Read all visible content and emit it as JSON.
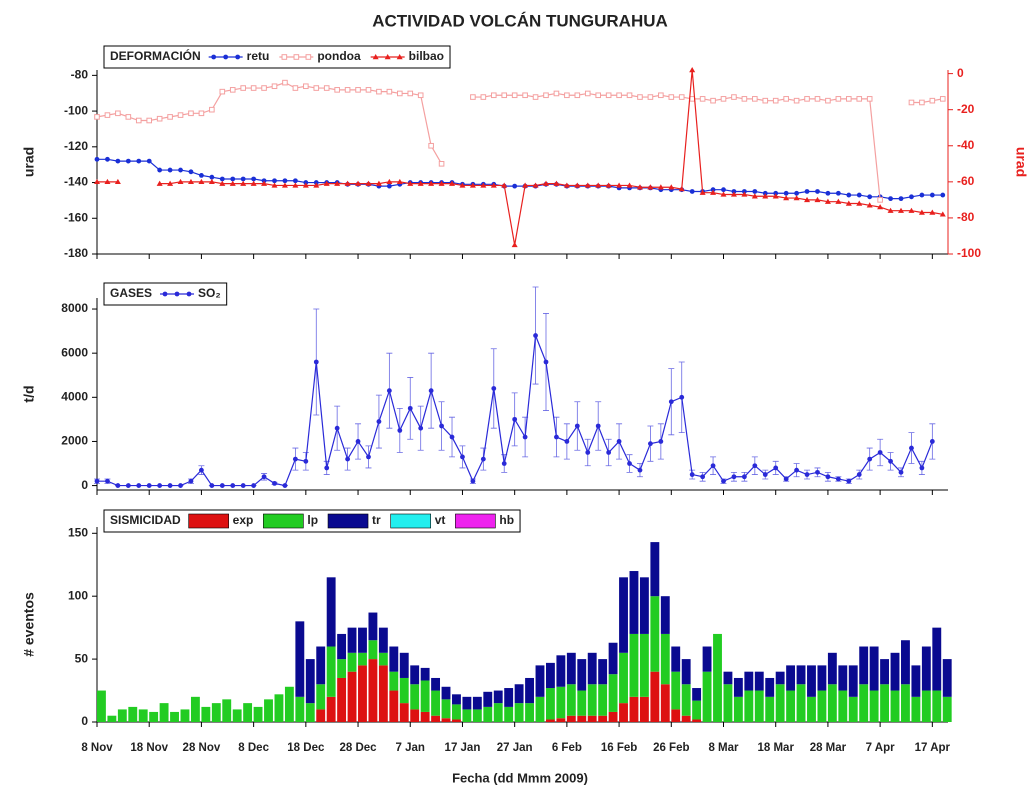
{
  "title": "ACTIVIDAD VOLCÁN TUNGURAHUA",
  "chart_data": [
    {
      "type": "line",
      "legend_title": "DEFORMACIÓN",
      "ylabel": "urad",
      "y2label": "urad",
      "y2color": "#e8201e",
      "ylim": [
        -180,
        -77
      ],
      "yticks": [
        -180,
        -160,
        -140,
        -120,
        -100,
        -80
      ],
      "y2lim": [
        -100,
        2
      ],
      "y2ticks": [
        -100,
        -80,
        -60,
        -40,
        -20,
        0
      ],
      "series": [
        {
          "name": "retu",
          "color": "#1a2fd6",
          "marker": "circle",
          "values": [
            -127,
            -127,
            -128,
            -128,
            -128,
            -128,
            -133,
            -133,
            -133,
            -134,
            -136,
            -137,
            -138,
            -138,
            -138,
            -138,
            -139,
            -139,
            -139,
            -139,
            -140,
            -140,
            -140,
            -140,
            -141,
            -141,
            -141,
            -142,
            -142,
            -141,
            -140,
            -140,
            -140,
            -140,
            -140,
            -141,
            -141,
            -141,
            -141,
            -142,
            -142,
            -142,
            -142,
            -141,
            -141,
            -142,
            -142,
            -142,
            -142,
            -142,
            -143,
            -143,
            -143,
            -143,
            -144,
            -144,
            -144,
            -145,
            -145,
            -144,
            -144,
            -145,
            -145,
            -145,
            -146,
            -146,
            -146,
            -146,
            -145,
            -145,
            -146,
            -146,
            -147,
            -147,
            -148,
            -148,
            -149,
            -149,
            -148,
            -147,
            -147,
            -147
          ]
        },
        {
          "name": "pondoa",
          "color": "#f4a0a0",
          "marker": "square-open",
          "axis": "y2",
          "values": [
            -24,
            -23,
            -22,
            -24,
            -26,
            -26,
            -25,
            -24,
            -23,
            -22,
            -22,
            -20,
            -10,
            -9,
            -8,
            -8,
            -8,
            -7,
            -5,
            -8,
            -7,
            -8,
            -8,
            -9,
            -9,
            -9,
            -9,
            -10,
            -10,
            -11,
            -11,
            -12,
            -40,
            -50,
            null,
            null,
            -13,
            -13,
            -12,
            -12,
            -12,
            -12,
            -13,
            -12,
            -11,
            -12,
            -12,
            -11,
            -12,
            -12,
            -12,
            -12,
            -13,
            -13,
            -12,
            -13,
            -13,
            -14,
            -14,
            -15,
            -14,
            -13,
            -14,
            -14,
            -15,
            -15,
            -14,
            -15,
            -14,
            -14,
            -15,
            -14,
            -14,
            -14,
            -14,
            -70,
            null,
            null,
            -16,
            -16,
            -15,
            -14
          ]
        },
        {
          "name": "bilbao",
          "color": "#e8201e",
          "marker": "triangle",
          "axis": "y2",
          "values": [
            -60,
            -60,
            -60,
            null,
            null,
            null,
            -61,
            -61,
            -60,
            -60,
            -60,
            -60,
            -61,
            -61,
            -61,
            -61,
            -61,
            -62,
            -62,
            -62,
            -62,
            -62,
            -61,
            -61,
            -61,
            -61,
            -61,
            -61,
            -60,
            -60,
            -61,
            -61,
            -61,
            -61,
            -61,
            -62,
            -62,
            -62,
            -62,
            -62,
            -95,
            -62,
            -62,
            -61,
            -61,
            -62,
            -62,
            -62,
            -62,
            -62,
            -62,
            -62,
            -63,
            -63,
            -63,
            -63,
            -64,
            2,
            -66,
            -66,
            -67,
            -67,
            -67,
            -68,
            -68,
            -68,
            -69,
            -69,
            -70,
            -70,
            -71,
            -71,
            -72,
            -72,
            -73,
            -74,
            -76,
            -76,
            -76,
            -77,
            -77,
            -78
          ]
        }
      ]
    },
    {
      "type": "line",
      "legend_title": "GASES",
      "ylabel": "t/d",
      "ylim": [
        -200,
        8500
      ],
      "yticks": [
        0,
        2000,
        4000,
        6000,
        8000
      ],
      "series": [
        {
          "name": "SO₂",
          "color": "#2a2ad8",
          "marker": "circle",
          "values": [
            200,
            200,
            0,
            0,
            0,
            0,
            0,
            0,
            0,
            200,
            700,
            0,
            0,
            0,
            0,
            0,
            400,
            100,
            0,
            1200,
            1100,
            5600,
            800,
            2600,
            1200,
            2000,
            1300,
            2900,
            4300,
            2500,
            3500,
            2600,
            4300,
            2700,
            2200,
            1300,
            200,
            1200,
            4400,
            1000,
            3000,
            2200,
            6800,
            5600,
            2200,
            2000,
            2700,
            1500,
            2700,
            1500,
            2000,
            1000,
            700,
            1900,
            2000,
            3800,
            4000,
            500,
            400,
            900,
            200,
            400,
            400,
            900,
            500,
            800,
            300,
            700,
            500,
            600,
            400,
            300,
            200,
            500,
            1200,
            1500,
            1100,
            600,
            1700,
            800,
            2000,
            null
          ],
          "errors": [
            100,
            100,
            0,
            0,
            0,
            0,
            0,
            0,
            0,
            100,
            200,
            0,
            0,
            0,
            0,
            0,
            150,
            50,
            0,
            500,
            400,
            2400,
            300,
            1000,
            500,
            800,
            500,
            1200,
            1700,
            1000,
            1400,
            1000,
            1700,
            1100,
            900,
            500,
            100,
            500,
            1800,
            400,
            1200,
            900,
            2200,
            2200,
            900,
            800,
            1100,
            600,
            1100,
            600,
            800,
            400,
            300,
            800,
            800,
            1500,
            1600,
            200,
            200,
            400,
            100,
            200,
            200,
            400,
            200,
            300,
            100,
            300,
            200,
            200,
            200,
            100,
            100,
            200,
            500,
            600,
            400,
            200,
            700,
            300,
            800,
            null
          ]
        }
      ]
    },
    {
      "type": "bar",
      "stacked": true,
      "legend_title": "SISMICIDAD",
      "ylabel": "# eventos",
      "xlabel": "Fecha (dd Mmm 2009)",
      "ylim": [
        0,
        155
      ],
      "yticks": [
        0,
        50,
        100,
        150
      ],
      "categories": [
        "8 Nov",
        null,
        null,
        null,
        null,
        "18 Nov",
        null,
        null,
        null,
        null,
        "28 Nov",
        null,
        null,
        null,
        null,
        "8 Dec",
        null,
        null,
        null,
        null,
        "18 Dec",
        null,
        null,
        null,
        null,
        "28 Dec",
        null,
        null,
        null,
        null,
        "7 Jan",
        null,
        null,
        null,
        null,
        "17 Jan",
        null,
        null,
        null,
        null,
        "27 Jan",
        null,
        null,
        null,
        null,
        "6 Feb",
        null,
        null,
        null,
        null,
        "16 Feb",
        null,
        null,
        null,
        null,
        "26 Feb",
        null,
        null,
        null,
        null,
        "8 Mar",
        null,
        null,
        null,
        null,
        "18 Mar",
        null,
        null,
        null,
        null,
        "28 Mar",
        null,
        null,
        null,
        null,
        "7 Apr",
        null,
        null,
        null,
        null,
        "17 Apr",
        null
      ],
      "series": [
        {
          "name": "exp",
          "color": "#dd1111",
          "values": [
            0,
            0,
            0,
            0,
            0,
            0,
            0,
            0,
            0,
            0,
            0,
            0,
            0,
            0,
            0,
            0,
            0,
            0,
            0,
            0,
            0,
            10,
            20,
            35,
            40,
            45,
            50,
            45,
            25,
            15,
            10,
            8,
            5,
            3,
            2,
            0,
            0,
            0,
            0,
            0,
            0,
            0,
            0,
            2,
            3,
            5,
            5,
            5,
            5,
            8,
            15,
            20,
            20,
            40,
            30,
            10,
            5,
            2,
            0,
            0,
            0,
            0,
            0,
            0,
            0,
            0,
            0,
            0,
            0,
            0,
            0,
            0,
            0,
            0,
            0,
            0,
            0,
            0,
            0,
            0,
            0,
            0
          ]
        },
        {
          "name": "lp",
          "color": "#22cc22",
          "values": [
            25,
            5,
            10,
            12,
            10,
            8,
            15,
            8,
            10,
            20,
            12,
            15,
            18,
            10,
            15,
            12,
            18,
            22,
            28,
            20,
            15,
            20,
            40,
            15,
            15,
            10,
            15,
            10,
            15,
            20,
            20,
            25,
            20,
            15,
            12,
            10,
            10,
            12,
            15,
            12,
            15,
            15,
            20,
            25,
            25,
            25,
            20,
            25,
            25,
            30,
            40,
            50,
            50,
            60,
            40,
            30,
            25,
            15,
            40,
            70,
            30,
            20,
            25,
            25,
            20,
            30,
            25,
            30,
            20,
            25,
            30,
            25,
            20,
            30,
            25,
            30,
            25,
            30,
            20,
            25,
            25,
            20
          ]
        },
        {
          "name": "tr",
          "color": "#0a0a90",
          "values": [
            0,
            0,
            0,
            0,
            0,
            0,
            0,
            0,
            0,
            0,
            0,
            0,
            0,
            0,
            0,
            0,
            0,
            0,
            0,
            60,
            35,
            30,
            55,
            20,
            20,
            20,
            22,
            20,
            20,
            20,
            15,
            10,
            10,
            10,
            8,
            10,
            10,
            12,
            10,
            15,
            15,
            20,
            25,
            20,
            25,
            25,
            25,
            25,
            20,
            25,
            60,
            50,
            45,
            43,
            30,
            20,
            20,
            10,
            20,
            0,
            10,
            15,
            15,
            15,
            15,
            10,
            20,
            15,
            25,
            20,
            25,
            20,
            25,
            30,
            35,
            20,
            30,
            35,
            25,
            35,
            50,
            30
          ]
        },
        {
          "name": "vt",
          "color": "#22eeee",
          "values": [
            0,
            0,
            0,
            0,
            0,
            0,
            0,
            0,
            0,
            0,
            0,
            0,
            0,
            0,
            0,
            0,
            0,
            0,
            0,
            0,
            0,
            0,
            0,
            0,
            0,
            0,
            0,
            0,
            0,
            0,
            0,
            0,
            0,
            0,
            0,
            0,
            0,
            0,
            0,
            0,
            0,
            0,
            0,
            0,
            0,
            0,
            0,
            0,
            0,
            0,
            0,
            0,
            0,
            0,
            0,
            0,
            0,
            0,
            0,
            0,
            0,
            0,
            0,
            0,
            0,
            0,
            0,
            0,
            0,
            0,
            0,
            0,
            0,
            0,
            0,
            0,
            0,
            0,
            0,
            0,
            0,
            0
          ]
        },
        {
          "name": "hb",
          "color": "#ee22ee",
          "values": [
            0,
            0,
            0,
            0,
            0,
            0,
            0,
            0,
            0,
            0,
            0,
            0,
            0,
            0,
            0,
            0,
            0,
            0,
            0,
            0,
            0,
            0,
            0,
            0,
            0,
            0,
            0,
            0,
            0,
            0,
            0,
            0,
            0,
            0,
            0,
            0,
            0,
            0,
            0,
            0,
            0,
            0,
            0,
            0,
            0,
            0,
            0,
            0,
            0,
            0,
            0,
            0,
            0,
            0,
            0,
            0,
            0,
            0,
            0,
            0,
            0,
            0,
            0,
            0,
            0,
            0,
            0,
            0,
            0,
            0,
            0,
            0,
            0,
            0,
            0,
            0,
            0,
            0,
            0,
            0,
            0,
            0
          ]
        }
      ]
    }
  ]
}
